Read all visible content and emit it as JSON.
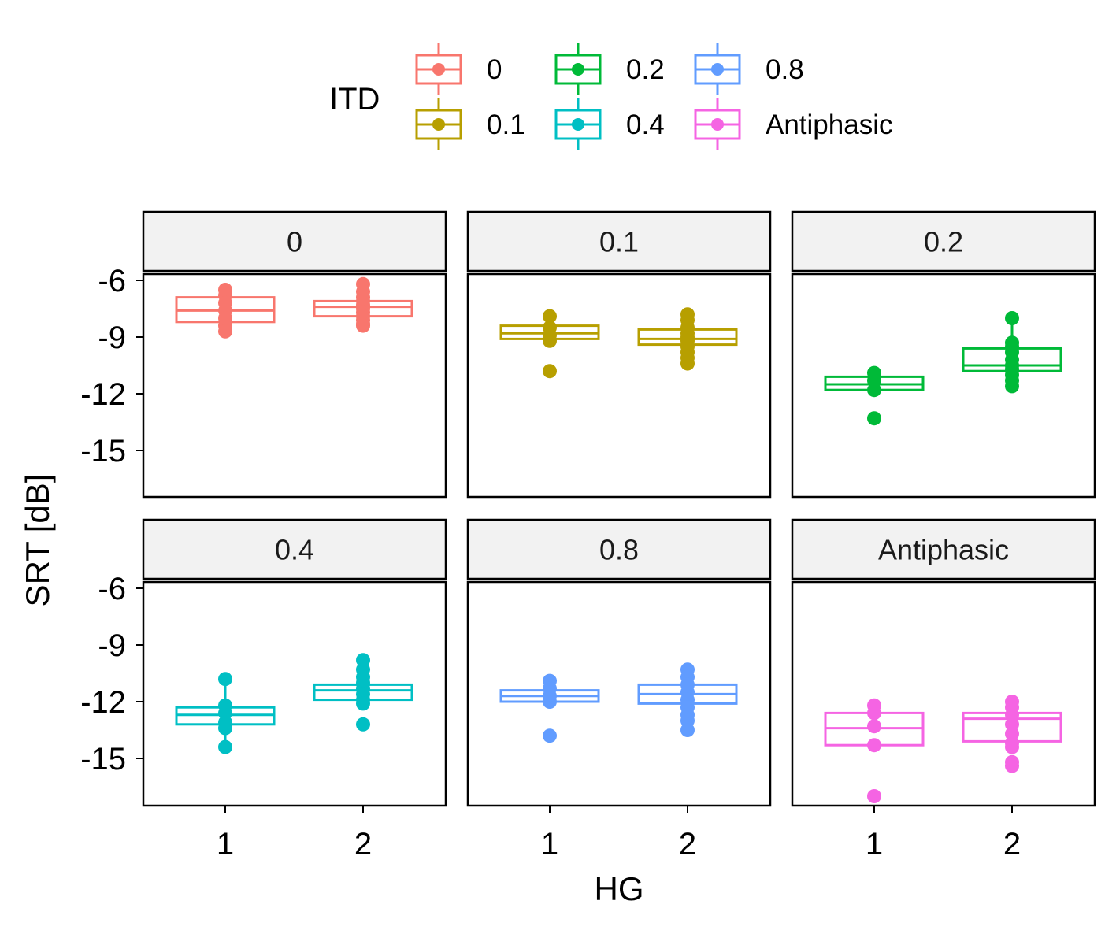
{
  "chart_data": {
    "type": "boxplot",
    "title": "",
    "xlabel": "HG",
    "ylabel": "SRT [dB]",
    "ylim": [
      -17.5,
      -5.5
    ],
    "yticks": [
      -6,
      -9,
      -12,
      -15
    ],
    "ytick_labels": [
      "-6",
      "-9",
      "-12",
      "-15"
    ],
    "categories": [
      "1",
      "2"
    ],
    "legend": {
      "title": "ITD",
      "position": "top",
      "items": [
        {
          "label": "0",
          "color": "#F8766D"
        },
        {
          "label": "0.1",
          "color": "#B79F00"
        },
        {
          "label": "0.2",
          "color": "#00BA38"
        },
        {
          "label": "0.4",
          "color": "#00BFC4"
        },
        {
          "label": "0.8",
          "color": "#619CFF"
        },
        {
          "label": "Antiphasic",
          "color": "#F564E3"
        }
      ]
    },
    "panels": [
      {
        "label": "0",
        "color": "#F8766D",
        "groups": [
          {
            "hg": "1",
            "q1": -8.2,
            "median": -7.6,
            "q3": -6.9,
            "whisker_low": -8.7,
            "whisker_high": -6.5,
            "points": [
              -6.5,
              -6.8,
              -7.2,
              -7.6,
              -8.0,
              -8.4,
              -8.7
            ]
          },
          {
            "hg": "2",
            "q1": -7.9,
            "median": -7.4,
            "q3": -7.1,
            "whisker_low": -8.4,
            "whisker_high": -6.2,
            "points": [
              -6.2,
              -6.6,
              -6.9,
              -7.1,
              -7.3,
              -7.5,
              -7.7,
              -7.9,
              -8.1,
              -8.3,
              -8.4
            ]
          }
        ]
      },
      {
        "label": "0.1",
        "color": "#B79F00",
        "groups": [
          {
            "hg": "1",
            "q1": -9.1,
            "median": -8.8,
            "q3": -8.4,
            "whisker_low": -9.2,
            "whisker_high": -7.9,
            "points": [
              -7.9,
              -8.5,
              -8.9,
              -9.2,
              -10.8
            ]
          },
          {
            "hg": "2",
            "q1": -9.4,
            "median": -9.1,
            "q3": -8.6,
            "whisker_low": -10.4,
            "whisker_high": -7.8,
            "points": [
              -7.8,
              -8.1,
              -8.5,
              -8.8,
              -9.0,
              -9.2,
              -9.5,
              -9.8,
              -10.1,
              -10.4
            ]
          }
        ]
      },
      {
        "label": "0.2",
        "color": "#00BA38",
        "groups": [
          {
            "hg": "1",
            "q1": -11.8,
            "median": -11.5,
            "q3": -11.1,
            "whisker_low": -11.8,
            "whisker_high": -10.9,
            "points": [
              -10.9,
              -11.3,
              -11.8,
              -13.3
            ]
          },
          {
            "hg": "2",
            "q1": -10.8,
            "median": -10.5,
            "q3": -9.6,
            "whisker_low": -11.6,
            "whisker_high": -8.0,
            "points": [
              -8.0,
              -9.3,
              -9.5,
              -9.8,
              -10.2,
              -10.5,
              -10.7,
              -11.0,
              -11.3,
              -11.6
            ]
          }
        ]
      },
      {
        "label": "0.4",
        "color": "#00BFC4",
        "groups": [
          {
            "hg": "1",
            "q1": -13.2,
            "median": -12.7,
            "q3": -12.3,
            "whisker_low": -14.4,
            "whisker_high": -10.8,
            "points": [
              -10.8,
              -12.2,
              -12.6,
              -13.1,
              -13.4,
              -14.4
            ]
          },
          {
            "hg": "2",
            "q1": -11.9,
            "median": -11.4,
            "q3": -11.1,
            "whisker_low": -12.2,
            "whisker_high": -9.8,
            "points": [
              -9.8,
              -10.3,
              -10.7,
              -11.0,
              -11.3,
              -11.6,
              -11.9,
              -12.1,
              -13.2
            ]
          }
        ]
      },
      {
        "label": "0.8",
        "color": "#619CFF",
        "groups": [
          {
            "hg": "1",
            "q1": -12.0,
            "median": -11.7,
            "q3": -11.4,
            "whisker_low": -12.0,
            "whisker_high": -10.9,
            "points": [
              -10.9,
              -11.3,
              -11.7,
              -12.0,
              -13.8
            ]
          },
          {
            "hg": "2",
            "q1": -12.1,
            "median": -11.6,
            "q3": -11.1,
            "whisker_low": -13.5,
            "whisker_high": -10.3,
            "points": [
              -10.3,
              -10.7,
              -11.1,
              -11.5,
              -11.9,
              -12.3,
              -12.7,
              -13.0,
              -13.5
            ]
          }
        ]
      },
      {
        "label": "Antiphasic",
        "color": "#F564E3",
        "groups": [
          {
            "hg": "1",
            "q1": -14.3,
            "median": -13.4,
            "q3": -12.6,
            "whisker_low": -14.3,
            "whisker_high": -12.2,
            "points": [
              -12.2,
              -12.6,
              -13.3,
              -14.3,
              -17.0
            ]
          },
          {
            "hg": "2",
            "q1": -14.1,
            "median": -12.9,
            "q3": -12.6,
            "whisker_low": -14.4,
            "whisker_high": -12.0,
            "points": [
              -12.0,
              -12.3,
              -12.7,
              -13.2,
              -13.7,
              -14.2,
              -14.4,
              -15.2,
              -15.4
            ]
          }
        ]
      }
    ]
  }
}
